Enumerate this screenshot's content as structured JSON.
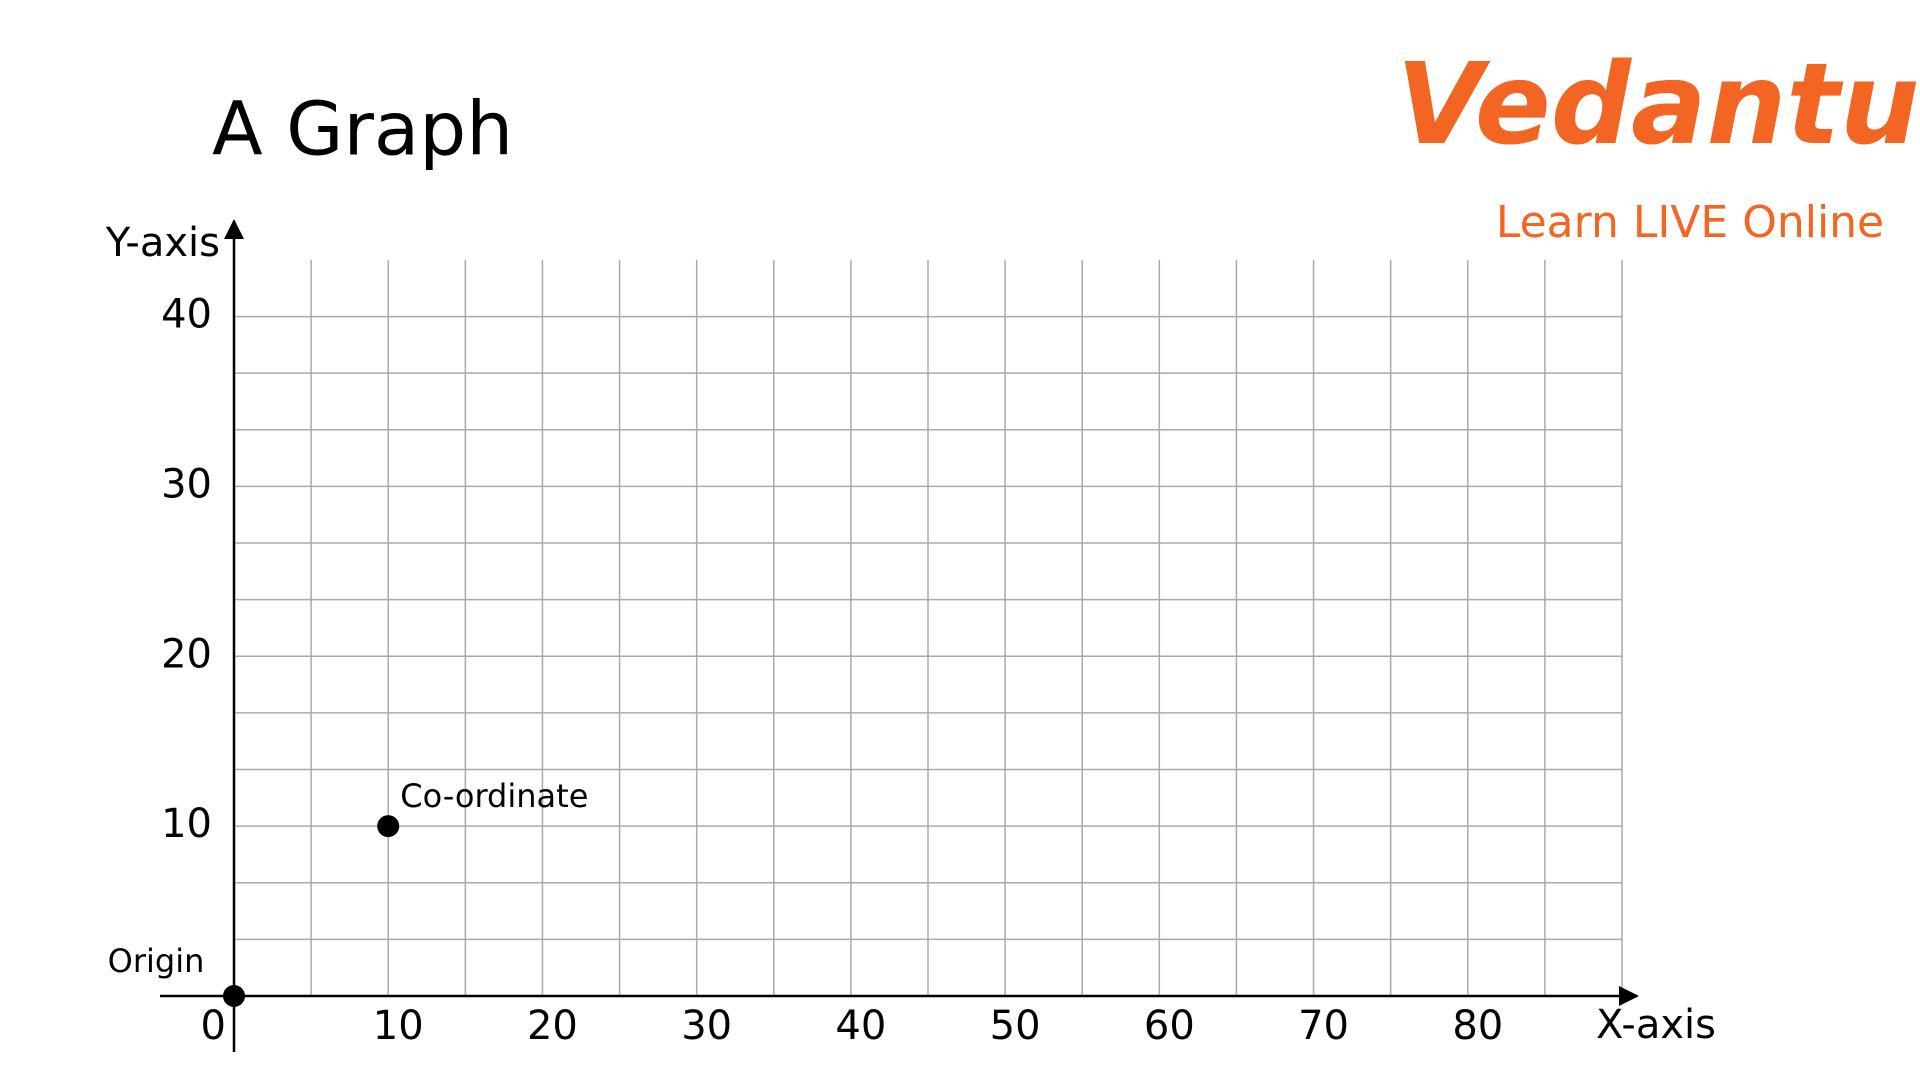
{
  "logo": {
    "name": "Vedantu",
    "tagline": "Learn LIVE Online"
  },
  "chart_data": {
    "type": "scatter",
    "title": "A Graph",
    "x_label": "X-axis",
    "y_label": "Y-axis",
    "x": [
      0,
      10
    ],
    "values": [
      0,
      10
    ],
    "point_labels": [
      "Origin",
      "Co-ordinate"
    ],
    "color": "#000000",
    "xlim": [
      0,
      90
    ],
    "ylim": [
      0,
      43.33
    ],
    "xticks": [
      0,
      10,
      20,
      30,
      40,
      50,
      60,
      70,
      80
    ],
    "yticks": [
      10,
      20,
      30,
      40
    ],
    "grid": true,
    "grid_divisions": {
      "x": 2,
      "y": 3
    },
    "grid_color": "#aaaaaa"
  }
}
